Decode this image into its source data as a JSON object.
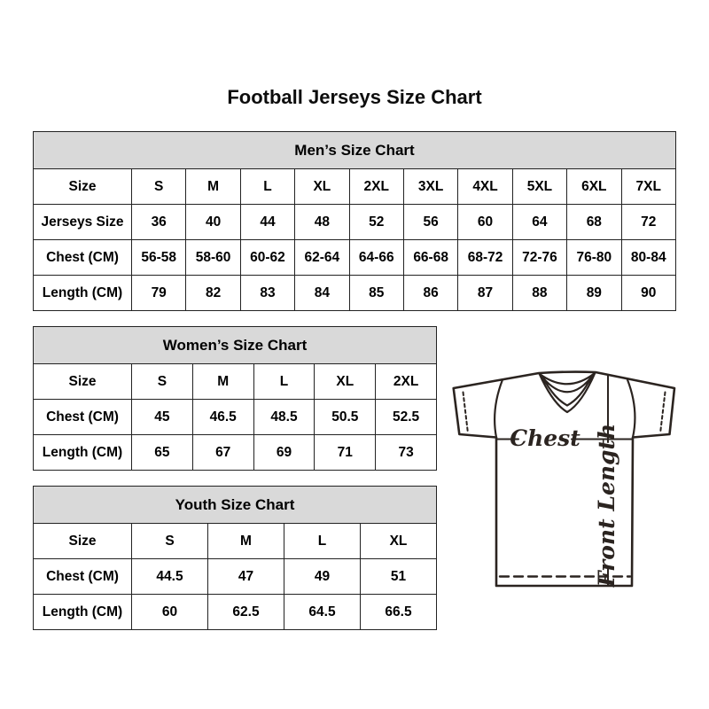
{
  "page": {
    "title": "Football Jerseys Size Chart"
  },
  "chart_data": [
    {
      "type": "table",
      "title": "Men’s Size Chart",
      "columns": [
        "Size",
        "S",
        "M",
        "L",
        "XL",
        "2XL",
        "3XL",
        "4XL",
        "5XL",
        "6XL",
        "7XL"
      ],
      "rows": [
        [
          "Jerseys Size",
          "36",
          "40",
          "44",
          "48",
          "52",
          "56",
          "60",
          "64",
          "68",
          "72"
        ],
        [
          "Chest (CM)",
          "56-58",
          "58-60",
          "60-62",
          "62-64",
          "64-66",
          "66-68",
          "68-72",
          "72-76",
          "76-80",
          "80-84"
        ],
        [
          "Length (CM)",
          "79",
          "82",
          "83",
          "84",
          "85",
          "86",
          "87",
          "88",
          "89",
          "90"
        ]
      ]
    },
    {
      "type": "table",
      "title": "Women’s Size Chart",
      "columns": [
        "Size",
        "S",
        "M",
        "L",
        "XL",
        "2XL"
      ],
      "rows": [
        [
          "Chest (CM)",
          "45",
          "46.5",
          "48.5",
          "50.5",
          "52.5"
        ],
        [
          "Length (CM)",
          "65",
          "67",
          "69",
          "71",
          "73"
        ]
      ]
    },
    {
      "type": "table",
      "title": "Youth Size Chart",
      "columns": [
        "Size",
        "S",
        "M",
        "L",
        "XL"
      ],
      "rows": [
        [
          "Chest (CM)",
          "44.5",
          "47",
          "49",
          "51"
        ],
        [
          "Length (CM)",
          "60",
          "62.5",
          "64.5",
          "66.5"
        ]
      ]
    }
  ],
  "diagram": {
    "chest_label": "Chest",
    "front_length_label": "Front Length"
  },
  "colors": {
    "table_header_bg": "#d9d9d9",
    "table_border": "#222222",
    "text": "#000000",
    "jersey_outline": "#2b2420"
  }
}
